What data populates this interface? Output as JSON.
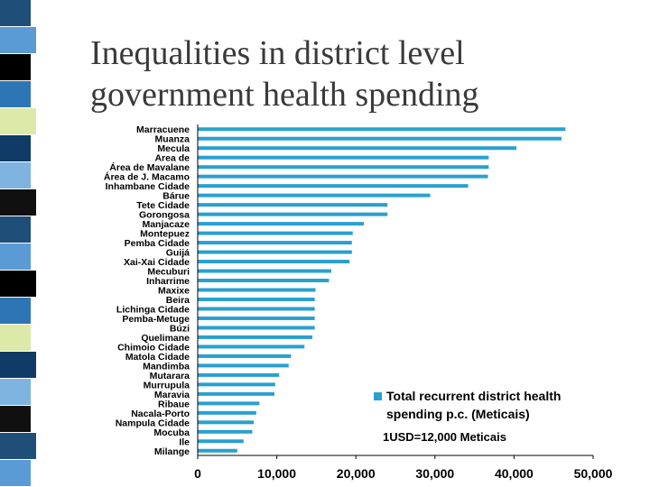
{
  "slide": {
    "title_line1": "Inequalities in district level",
    "title_line2": "government health spending"
  },
  "colors": {
    "bar": "#2AA0CF",
    "stripe": [
      "#1F4E79",
      "#5B9BD5",
      "#000000",
      "#2E75B6",
      "#DDE9A8",
      "#0F3B66",
      "#7FB3E0",
      "#101010"
    ]
  },
  "chart_data": {
    "type": "bar",
    "orientation": "horizontal",
    "title": "",
    "xlabel": "",
    "ylabel": "",
    "xlim": [
      0,
      50000
    ],
    "x_ticks": [
      "0",
      "10,000",
      "20,000",
      "30,000",
      "40,000",
      "50,000"
    ],
    "grid": false,
    "legend_position": "bottom-right",
    "series": [
      {
        "name": "Total recurrent district health spending p.c. (Meticais)"
      }
    ],
    "note": "1USD=12,000 Meticais",
    "categories": [
      "Marracuene",
      "Muanza",
      "Mecula",
      "Area de",
      "Área de Mavalane",
      "Área de J. Macamo",
      "Inhambane Cidade",
      "Bárue",
      "Tete Cidade",
      "Gorongosa",
      "Manjacaze",
      "Montepuez",
      "Pemba Cidade",
      "Guijá",
      "Xai-Xai Cidade",
      "Mecuburi",
      "Inharrime",
      "Maxixe",
      "Beira",
      "Lichinga Cidade",
      "Pemba-Metuge",
      "Búzi",
      "Quelimane",
      "Chimoio Cidade",
      "Matola Cidade",
      "Mandimba",
      "Mutarara",
      "Murrupula",
      "Maravia",
      "Ribaue",
      "Nacala-Porto",
      "Nampula Cidade",
      "Mocuba",
      "Ile",
      "Milange"
    ],
    "values": [
      46500,
      46000,
      40300,
      36800,
      36800,
      36700,
      34200,
      29400,
      24000,
      24000,
      21000,
      19600,
      19500,
      19500,
      19200,
      16900,
      16600,
      14900,
      14800,
      14800,
      14800,
      14800,
      14500,
      13500,
      11800,
      11500,
      10300,
      9800,
      9700,
      7800,
      7400,
      7100,
      6900,
      5800,
      5000
    ]
  }
}
